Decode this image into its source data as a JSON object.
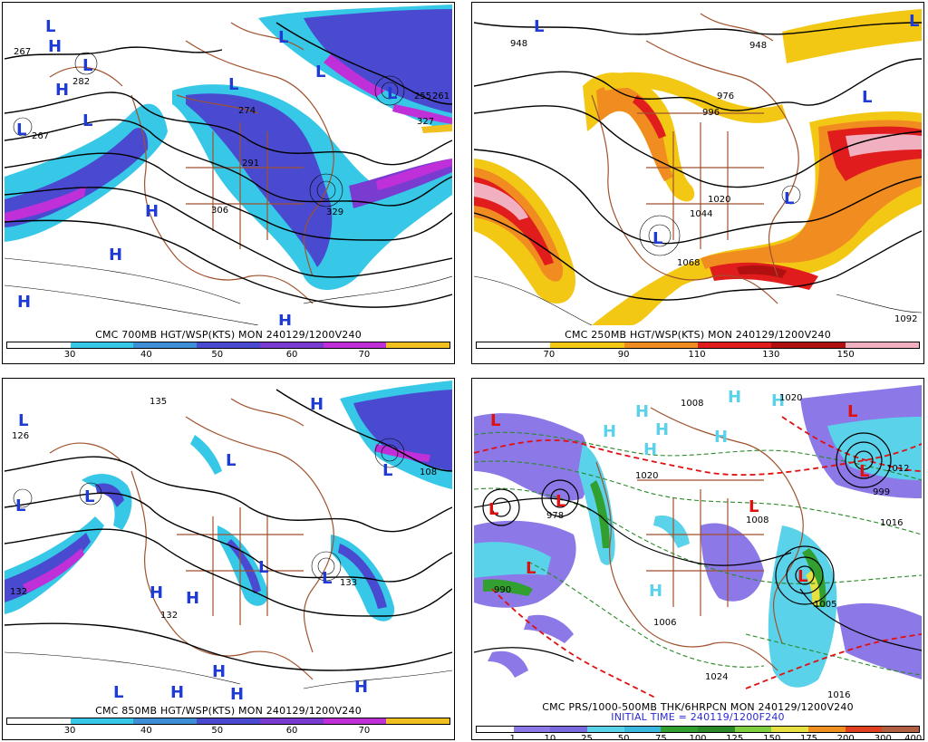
{
  "colors": {
    "bg": "#ffffff",
    "border": "#000000",
    "coast": "#a0522d",
    "contour": "#000000",
    "high": "#1f3bd6",
    "low": "#1f3bd6",
    "low_red": "#e01010",
    "ws": [
      "#ffffff",
      "#36c8e6",
      "#3d8fd8",
      "#4a4ad0",
      "#7a3bd0",
      "#c030d8",
      "#f0c020"
    ],
    "ws250": [
      "#ffffff",
      "#f2c814",
      "#f08c20",
      "#e01c1c",
      "#b01010",
      "#f0b0c0"
    ],
    "precip": [
      "#ffffff",
      "#8c78e6",
      "#7a6ae0",
      "#5ad2ea",
      "#3ab8e0",
      "#32a030",
      "#2a8a28",
      "#7ed040",
      "#e6e040",
      "#f09020",
      "#e04020",
      "#b06040"
    ]
  },
  "panels": [
    {
      "id": "p700",
      "caption": "CMC 700MB HGT/WSP(KTS) MON 240129/1200V240",
      "scale_ticks": [
        "30",
        "40",
        "50",
        "60",
        "70"
      ],
      "markers": [
        {
          "t": "L",
          "c": "blue"
        },
        {
          "t": "H",
          "c": "blue"
        },
        {
          "t": "L",
          "c": "blue"
        },
        {
          "t": "H",
          "c": "blue"
        },
        {
          "t": "L",
          "c": "blue"
        },
        {
          "t": "L",
          "c": "blue"
        },
        {
          "t": "L",
          "c": "blue"
        },
        {
          "t": "L",
          "c": "blue"
        },
        {
          "t": "L",
          "c": "blue"
        },
        {
          "t": "L",
          "c": "blue"
        },
        {
          "t": "H",
          "c": "blue"
        },
        {
          "t": "H",
          "c": "blue"
        },
        {
          "t": "H",
          "c": "blue"
        },
        {
          "t": "H",
          "c": "blue"
        }
      ],
      "values": [
        "267",
        "282",
        "267",
        "291",
        "306",
        "255",
        "261",
        "327",
        "274",
        "329"
      ]
    },
    {
      "id": "p250",
      "caption": "CMC 250MB HGT/WSP(KTS) MON 240129/1200V240",
      "scale_ticks": [
        "70",
        "90",
        "110",
        "130",
        "150"
      ],
      "markers": [
        {
          "t": "L",
          "c": "blue"
        },
        {
          "t": "L",
          "c": "blue"
        },
        {
          "t": "L",
          "c": "blue"
        },
        {
          "t": "L",
          "c": "blue"
        },
        {
          "t": "L",
          "c": "blue"
        }
      ],
      "values": [
        "948",
        "948",
        "976",
        "996",
        "1020",
        "1044",
        "1068",
        "1092"
      ]
    },
    {
      "id": "p850",
      "caption": "CMC 850MB HGT/WSP(KTS) MON 240129/1200V240",
      "scale_ticks": [
        "30",
        "40",
        "50",
        "60",
        "70"
      ],
      "markers": [
        {
          "t": "L",
          "c": "blue"
        },
        {
          "t": "H",
          "c": "blue"
        },
        {
          "t": "L",
          "c": "blue"
        },
        {
          "t": "L",
          "c": "blue"
        },
        {
          "t": "L",
          "c": "blue"
        },
        {
          "t": "L",
          "c": "blue"
        },
        {
          "t": "L",
          "c": "blue"
        },
        {
          "t": "L",
          "c": "blue"
        },
        {
          "t": "H",
          "c": "blue"
        },
        {
          "t": "H",
          "c": "blue"
        },
        {
          "t": "H",
          "c": "blue"
        },
        {
          "t": "L",
          "c": "blue"
        },
        {
          "t": "H",
          "c": "blue"
        },
        {
          "t": "H",
          "c": "blue"
        },
        {
          "t": "H",
          "c": "blue"
        }
      ],
      "values": [
        "135",
        "126",
        "108",
        "132",
        "132",
        "133"
      ]
    },
    {
      "id": "pprs",
      "caption": "CMC PRS/1000-500MB THK/6HRPCN MON 240129/1200V240",
      "caption2": "INITIAL TIME = 240119/1200F240",
      "scale_ticks": [
        "1",
        "10",
        "25",
        "50",
        "75",
        "100",
        "125",
        "150",
        "175",
        "200",
        "300",
        "400"
      ],
      "markers": [
        {
          "t": "L",
          "c": "red"
        },
        {
          "t": "L",
          "c": "red"
        },
        {
          "t": "L",
          "c": "red"
        },
        {
          "t": "L",
          "c": "red"
        },
        {
          "t": "L",
          "c": "red"
        },
        {
          "t": "L",
          "c": "red"
        },
        {
          "t": "L",
          "c": "red"
        },
        {
          "t": "L",
          "c": "red"
        },
        {
          "t": "H",
          "c": "blue"
        },
        {
          "t": "H",
          "c": "blue"
        },
        {
          "t": "H",
          "c": "blue"
        },
        {
          "t": "H",
          "c": "blue"
        },
        {
          "t": "H",
          "c": "blue"
        },
        {
          "t": "H",
          "c": "blue"
        },
        {
          "t": "H",
          "c": "blue"
        },
        {
          "t": "H",
          "c": "blue"
        }
      ],
      "values": [
        "1008",
        "1020",
        "978",
        "990",
        "1016",
        "1012",
        "1020",
        "1024",
        "1008",
        "999",
        "1005",
        "1016",
        "1006"
      ]
    }
  ]
}
